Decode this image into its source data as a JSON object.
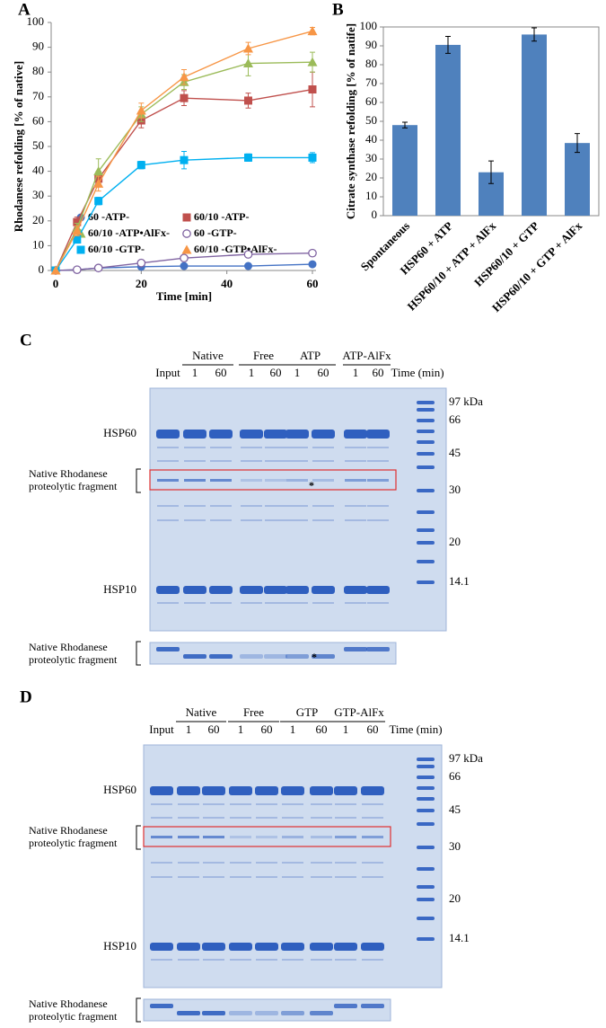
{
  "chart_data": [
    {
      "type": "scatter-line",
      "panel_label": "A",
      "x_label": "Time [min]",
      "y_label": "Rhodanese refolding [% of native]",
      "x": [
        0,
        5,
        10,
        20,
        30,
        45,
        60
      ],
      "xlim": [
        0,
        60
      ],
      "xticks": [
        0,
        20,
        40,
        60
      ],
      "ylim": [
        0,
        100
      ],
      "yticks": [
        0,
        10,
        20,
        30,
        40,
        50,
        60,
        70,
        80,
        90,
        100
      ],
      "series": [
        {
          "name": "60 -ATP-",
          "color": "#4472c4",
          "marker": "circle",
          "values": [
            0,
            0.3,
            1,
            1.5,
            1.8,
            1.8,
            2.5
          ]
        },
        {
          "name": "60/10 -ATP-",
          "color": "#c0504d",
          "marker": "square",
          "values": [
            0,
            19.5,
            37,
            60.5,
            69.5,
            68.5,
            73
          ],
          "errors": [
            0,
            2,
            3,
            3,
            3,
            3,
            7
          ]
        },
        {
          "name": "60/10 -ATP•AlFx-",
          "color": "#9bbb59",
          "marker": "triangle",
          "values": [
            0,
            17,
            40,
            63,
            76,
            83.5,
            84
          ],
          "errors": [
            0,
            2,
            5,
            3,
            3,
            5,
            4
          ]
        },
        {
          "name": "60 -GTP-",
          "color": "#8064a2",
          "marker": "circle-open",
          "values": [
            0,
            0.3,
            1,
            3,
            5,
            6.5,
            7
          ]
        },
        {
          "name": "60/10 -GTP-",
          "color": "#00b0f0",
          "marker": "square",
          "values": [
            0,
            12.5,
            28,
            42.5,
            44.5,
            45.5,
            45.5
          ],
          "errors": [
            0,
            1.5,
            1.5,
            1.5,
            3.5,
            1.5,
            2
          ]
        },
        {
          "name": "60/10 -GTP•AlFx-",
          "color": "#f79646",
          "marker": "triangle",
          "values": [
            0,
            16,
            35,
            64.5,
            78,
            89.5,
            96.5
          ],
          "errors": [
            0,
            2,
            3,
            3,
            3,
            2.5,
            1.5
          ]
        }
      ]
    },
    {
      "type": "bar",
      "panel_label": "B",
      "y_label": "Citrate synthase refolding [% of natife]",
      "color": "#4f81bd",
      "categories": [
        "Spontaneous",
        "HSP60 + ATP",
        "HSP60/10 + ATP + AlFx",
        "HSP60/10 + GTP",
        "HSP60/10 + GTP + AlFx"
      ],
      "values": [
        48,
        90.5,
        23,
        96,
        38.5
      ],
      "errors": [
        1.5,
        4.5,
        6,
        3.5,
        5
      ],
      "ylim": [
        0,
        100
      ],
      "yticks": [
        0,
        10,
        20,
        30,
        40,
        50,
        60,
        70,
        80,
        90,
        100
      ]
    }
  ],
  "gels": [
    {
      "label": "C",
      "groups": [
        "Native",
        "Free",
        "ATP",
        "ATP-AlFx"
      ],
      "lanes": [
        "Input",
        1,
        60,
        1,
        60,
        1,
        60,
        1,
        60
      ],
      "time_label": "Time (min)",
      "markers": [
        "97 kDa",
        66,
        45,
        30,
        20,
        14.1
      ],
      "hsp60": "HSP60",
      "hsp10": "HSP10",
      "fragment_label": [
        "Native Rhodanese",
        "proteolytic fragment"
      ],
      "strip_label": [
        "Native Rhodanese",
        "proteolytic fragment"
      ],
      "star": "*"
    },
    {
      "label": "D",
      "groups": [
        "Native",
        "Free",
        "GTP",
        "GTP-AlFx"
      ],
      "lanes": [
        "Input",
        1,
        60,
        1,
        60,
        1,
        60,
        1,
        60
      ],
      "time_label": "Time (min)",
      "markers": [
        "97 kDa",
        66,
        45,
        30,
        20,
        14.1
      ],
      "hsp60": "HSP60",
      "hsp10": "HSP10",
      "fragment_label": [
        "Native Rhodanese",
        "proteolytic fragment"
      ],
      "strip_label": [
        "Native Rhodanese",
        "proteolytic fragment"
      ]
    }
  ]
}
